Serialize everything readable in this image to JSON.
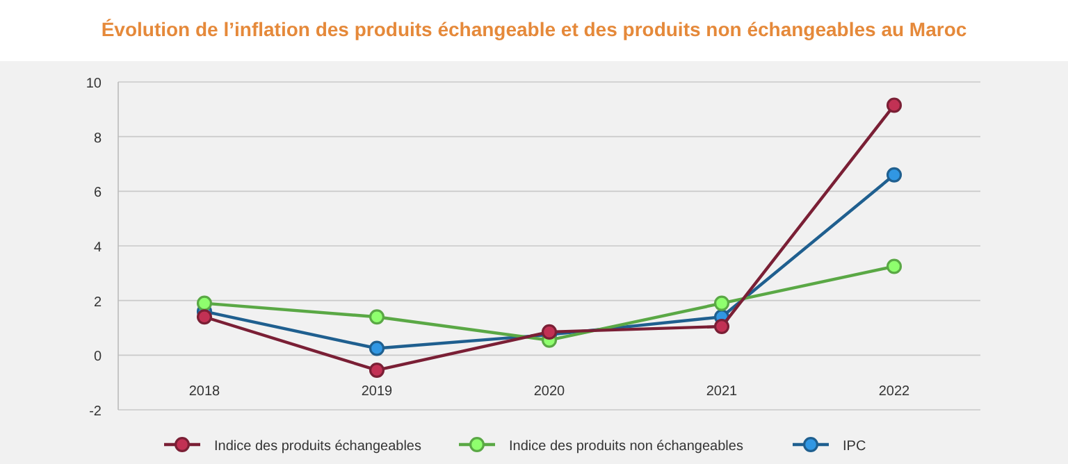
{
  "chart_data": {
    "type": "line",
    "title": "Évolution de l’inflation des produits échangeable et des produits non échangeables au Maroc",
    "categories": [
      "2018",
      "2019",
      "2020",
      "2021",
      "2022"
    ],
    "series": [
      {
        "name": "Indice des produits échangeables",
        "color": "#7a1f35",
        "values": [
          1.4,
          -0.55,
          0.85,
          1.05,
          9.15
        ]
      },
      {
        "name": "Indice des produits non échangeables",
        "color": "#5aa845",
        "values": [
          1.9,
          1.4,
          0.55,
          1.9,
          3.25
        ]
      },
      {
        "name": "IPC",
        "color": "#1f5f8f",
        "values": [
          1.6,
          0.25,
          0.75,
          1.4,
          6.6
        ]
      }
    ],
    "ylim": [
      -2,
      10
    ],
    "yticks": [
      -2,
      0,
      2,
      4,
      6,
      8,
      10
    ],
    "grid": "y",
    "legend": "bottom",
    "marker": "circle"
  }
}
